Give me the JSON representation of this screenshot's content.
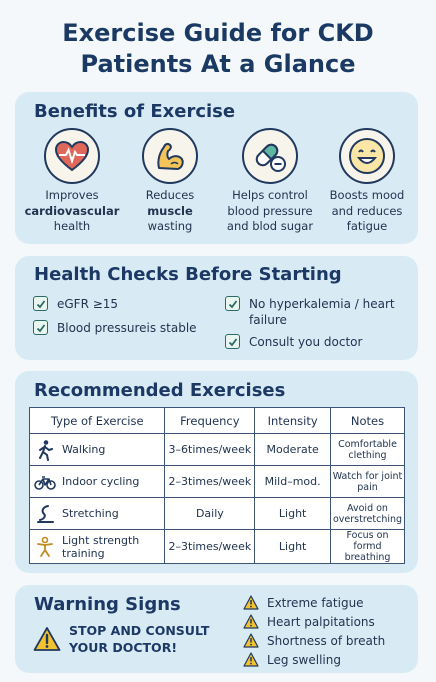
{
  "title_line1": "Exercise Guide for CKD",
  "title_line2": "Patients At a Glance",
  "benefits": {
    "heading": "Benefits of Exercise",
    "items": [
      {
        "icon": "heart-icon",
        "line1": "Improves",
        "line2_bold": "cardiovascular",
        "line3": "health"
      },
      {
        "icon": "flexed-arm-icon",
        "line1": "Reduces",
        "line2_bold": "muscle",
        "line3": "wasting"
      },
      {
        "icon": "capsule-icon",
        "line1": "Helps control",
        "line2": "blood pressure",
        "line3": "and blod sugar"
      },
      {
        "icon": "smiley-icon",
        "line1": "Boosts mood",
        "line2": "and reduces",
        "line3": "fatigue"
      }
    ]
  },
  "checks": {
    "heading": "Health Checks Before Starting",
    "items": [
      "eGFR ≥15",
      "Blood pressureis stable",
      "No hyperkalemia / heart failure",
      "Consult you doctor"
    ]
  },
  "exercises": {
    "heading": "Recommended Exercises",
    "columns": [
      "Type of Exercise",
      "Frequency",
      "Intensity",
      "Notes"
    ],
    "rows": [
      {
        "icon": "walking-icon",
        "type": "Walking",
        "frequency": "3–6times/week",
        "intensity": "Moderate",
        "notes": "Comfortable clething"
      },
      {
        "icon": "bicycle-icon",
        "type": "Indoor cycling",
        "frequency": "2–3times/week",
        "intensity": "Mild–mod.",
        "notes": "Watch for joint pain"
      },
      {
        "icon": "stretching-icon",
        "type": "Stretching",
        "frequency": "Daily",
        "intensity": "Light",
        "notes": "Avoid on overstretching"
      },
      {
        "icon": "strength-icon",
        "type": "Light strength training",
        "frequency": "2–3times/week",
        "intensity": "Light",
        "notes": "Focus on formd breathing"
      }
    ]
  },
  "warnings": {
    "heading": "Warning Signs",
    "stop_line1": "STOP AND CONSULT",
    "stop_line2": "YOUR DOCTOR!",
    "items": [
      "Extreme fatigue",
      "Heart palpitations",
      "Shortness of breath",
      "Leg swelling"
    ]
  },
  "colors": {
    "card": "#d8ebf5",
    "heading": "#1c3864",
    "warning": "#f2c230",
    "heart": "#e0685a"
  }
}
